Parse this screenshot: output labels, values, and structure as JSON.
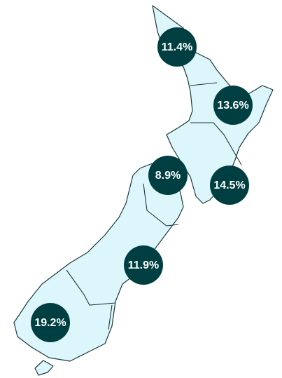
{
  "map": {
    "regions": [
      {
        "value": 11.4,
        "label": "11.4%"
      },
      {
        "value": 13.6,
        "label": "13.6%"
      },
      {
        "value": 14.5,
        "label": "14.5%"
      },
      {
        "value": 8.9,
        "label": "8.9%"
      },
      {
        "value": 11.9,
        "label": "11.9%"
      },
      {
        "value": 19.2,
        "label": "19.2%"
      }
    ]
  }
}
